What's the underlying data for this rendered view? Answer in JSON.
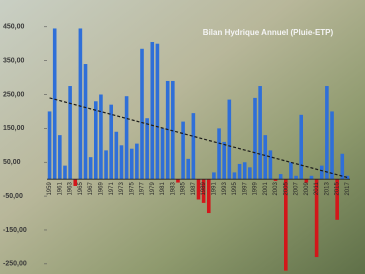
{
  "chart_data": {
    "type": "bar",
    "title": "Bilan Hydrique Annuel (Pluie-ETP)",
    "categories": [
      "1959",
      null,
      "1961",
      null,
      "1963",
      null,
      "1965",
      null,
      "1967",
      null,
      "1969",
      null,
      "1971",
      null,
      "1973",
      null,
      "1975",
      null,
      "1977",
      null,
      "1979",
      null,
      "1981",
      null,
      "1983",
      null,
      "1985",
      null,
      "1987",
      null,
      "1989",
      null,
      "1991",
      null,
      "1993",
      null,
      "1995",
      null,
      "1997",
      null,
      "1999",
      null,
      "2001",
      null,
      "2003",
      null,
      "2005",
      null,
      "2007",
      null,
      "2009",
      null,
      "2011",
      null,
      "2013",
      null,
      "2015",
      null,
      "2017"
    ],
    "values": [
      200,
      445,
      130,
      40,
      275,
      -20,
      445,
      340,
      65,
      230,
      250,
      85,
      220,
      140,
      100,
      245,
      90,
      105,
      385,
      180,
      405,
      400,
      150,
      290,
      290,
      -10,
      170,
      60,
      195,
      -60,
      -70,
      -100,
      20,
      150,
      110,
      235,
      20,
      45,
      50,
      35,
      240,
      275,
      130,
      85,
      -5,
      15,
      -270,
      50,
      10,
      190,
      -10,
      10,
      -230,
      40,
      275,
      200,
      -120,
      75,
      10
    ],
    "color": "#2f6fd8",
    "negative_color": "#d3161a",
    "trend": [
      240,
      5
    ],
    "trend_color": "#1a1a1a",
    "ylim": [
      -280,
      470
    ],
    "yticks": [
      {
        "value": -250,
        "label": "-250,00"
      },
      {
        "value": -150,
        "label": "-150,00"
      },
      {
        "value": -50,
        "label": "-50,00"
      },
      {
        "value": 50,
        "label": "50,00"
      },
      {
        "value": 150,
        "label": "150,00"
      },
      {
        "value": 250,
        "label": "250,00"
      },
      {
        "value": 350,
        "label": "350,00"
      },
      {
        "value": 450,
        "label": "450,00"
      }
    ],
    "grid": false
  }
}
